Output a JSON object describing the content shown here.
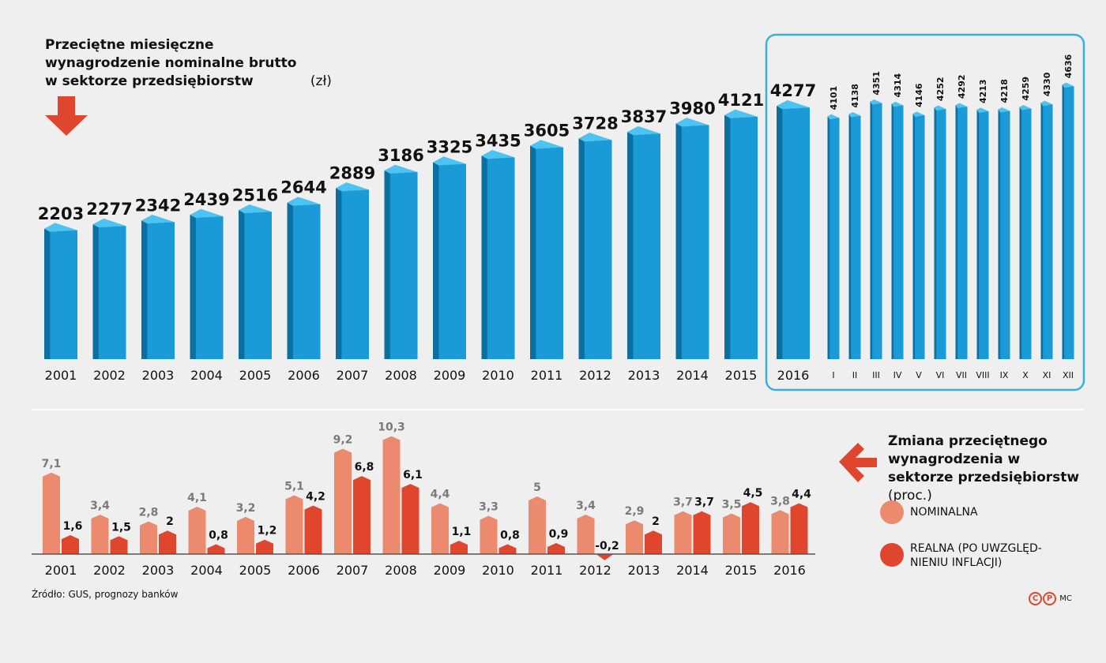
{
  "colors": {
    "blue_front": "#1a9ad6",
    "blue_side": "#0c6fa2",
    "blue_top": "#4cc3f0",
    "nominal": "#ec8a6e",
    "real": "#e0452e",
    "highlight_box": "#3ab0e0"
  },
  "title_top": {
    "bold": "Przeciętne miesięczne wynagrodzenie nominalne brutto w sektorze przedsiębiorstw",
    "unit": "(zł)"
  },
  "title_bottom": {
    "bold": "Zmiana przeciętnego wynagrodzenia w sektorze przedsiębiorstw",
    "unit": "(proc.)"
  },
  "legend": {
    "nominal": "NOMINALNA",
    "real_line1": "REALNA (PO UWZGLĘD-",
    "real_line2": "NIENIU INFLACJI)"
  },
  "source": "Źródło: GUS, prognozy banków",
  "credit": {
    "c": "C",
    "p": "P",
    "author": "MC"
  },
  "chart_data": [
    {
      "type": "bar",
      "style": "3d",
      "categories": [
        "2001",
        "2002",
        "2003",
        "2004",
        "2005",
        "2006",
        "2007",
        "2008",
        "2009",
        "2010",
        "2011",
        "2012",
        "2013",
        "2014",
        "2015",
        "2016"
      ],
      "values": [
        2203,
        2277,
        2342,
        2439,
        2516,
        2644,
        2889,
        3186,
        3325,
        3435,
        3605,
        3728,
        3837,
        3980,
        4121,
        4277
      ],
      "labels": [
        "2203",
        "2277",
        "2342",
        "2439",
        "2516",
        "2644",
        "2889",
        "3186",
        "3325",
        "3435",
        "3605",
        "3728",
        "3837",
        "3980",
        "4121",
        "4277"
      ]
    },
    {
      "type": "bar",
      "style": "3d",
      "highlighted": true,
      "categories": [
        "I",
        "II",
        "III",
        "IV",
        "V",
        "VI",
        "VII",
        "VIII",
        "IX",
        "X",
        "XI",
        "XII"
      ],
      "values": [
        4101,
        4138,
        4351,
        4314,
        4146,
        4252,
        4292,
        4213,
        4218,
        4259,
        4330,
        4636
      ],
      "labels": [
        "4101",
        "4138",
        "4351",
        "4314",
        "4146",
        "4252",
        "4292",
        "4213",
        "4218",
        "4259",
        "4330",
        "4636"
      ]
    },
    {
      "type": "bar",
      "categories": [
        "2001",
        "2002",
        "2003",
        "2004",
        "2005",
        "2006",
        "2007",
        "2008",
        "2009",
        "2010",
        "2011",
        "2012",
        "2013",
        "2014",
        "2015",
        "2016"
      ],
      "series": [
        {
          "name": "NOMINALNA",
          "values": [
            7.1,
            3.4,
            2.8,
            4.1,
            3.2,
            5.1,
            9.2,
            10.3,
            4.4,
            3.3,
            5,
            3.4,
            2.9,
            3.7,
            3.5,
            3.8
          ],
          "labels": [
            "7,1",
            "3,4",
            "2,8",
            "4,1",
            "3,2",
            "5,1",
            "9,2",
            "10,3",
            "4,4",
            "3,3",
            "5",
            "3,4",
            "2,9",
            "3,7",
            "3,5",
            "3,8"
          ]
        },
        {
          "name": "REALNA (PO UWZGLĘDNIENIU INFLACJI)",
          "values": [
            1.6,
            1.5,
            2,
            0.8,
            1.2,
            4.2,
            6.8,
            6.1,
            1.1,
            0.8,
            0.9,
            -0.2,
            2,
            3.7,
            4.5,
            4.4
          ],
          "labels": [
            "1,6",
            "1,5",
            "2",
            "0,8",
            "1,2",
            "4,2",
            "6,8",
            "6,1",
            "1,1",
            "0,8",
            "0,9",
            "-0,2",
            "2",
            "3,7",
            "4,5",
            "4,4"
          ]
        }
      ]
    }
  ]
}
